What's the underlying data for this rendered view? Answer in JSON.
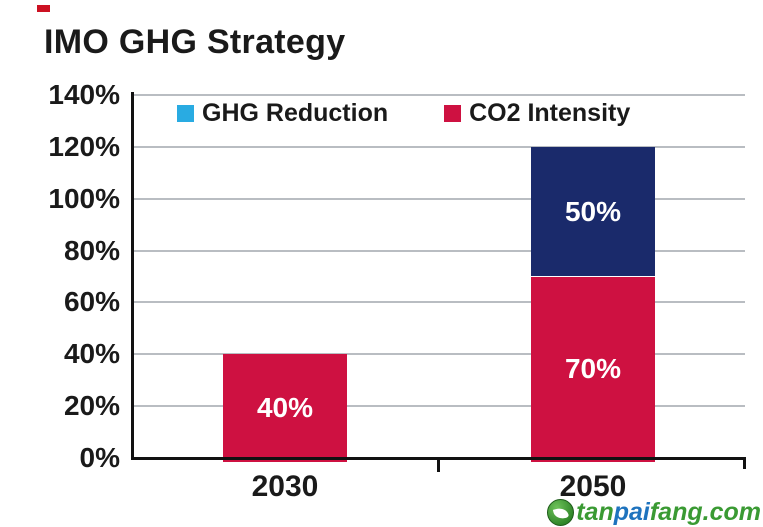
{
  "chart_data": {
    "type": "bar",
    "stacked": true,
    "title": "IMO GHG Strategy",
    "categories": [
      "2030",
      "2050"
    ],
    "series": [
      {
        "name": "CO2 Intensity",
        "values": [
          40,
          70
        ],
        "labels": [
          "40%",
          "70%"
        ],
        "color": "#ce1141"
      },
      {
        "name": "GHG Reduction",
        "values": [
          0,
          50
        ],
        "labels": [
          "",
          "50%"
        ],
        "color": "#1a2a6b"
      }
    ],
    "y_ticks": [
      "140%",
      "120%",
      "100%",
      "80%",
      "60%",
      "40%",
      "20%",
      "0%"
    ],
    "ylim": [
      0,
      140
    ],
    "grid": true,
    "gridline_color": "#b9bdc2",
    "axis_color": "#111111",
    "bar_label_color": "#ffffff",
    "legend_position": "top-inside"
  },
  "legend": {
    "items": [
      {
        "label": "GHG Reduction",
        "color": "#29abe2"
      },
      {
        "label": "CO2 Intensity",
        "color": "#ce1141"
      }
    ]
  },
  "watermark": {
    "name": "tanpaifang.com",
    "parts": [
      {
        "text": "tan",
        "color": "#3a9a33"
      },
      {
        "text": "pai",
        "color": "#1e73be"
      },
      {
        "text": "fang",
        "color": "#3a9a33"
      },
      {
        "text": ".com",
        "color": "#3a9a33"
      }
    ],
    "logo_color": "#3a9a33"
  }
}
